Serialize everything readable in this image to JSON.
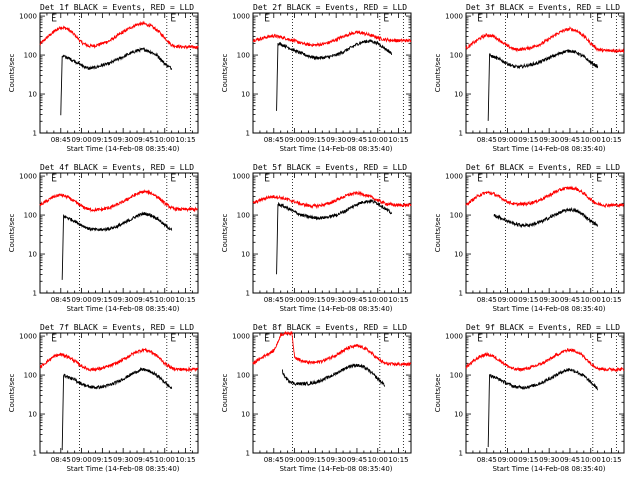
{
  "chart_data": {
    "type": "line",
    "panel_title_template": "{det} BLACK = Events, RED = LLD",
    "xlabel": "Start Time (14-Feb-08 08:35:40)",
    "ylabel": "Counts/sec",
    "xticks_min": [
      565,
      580,
      595,
      610,
      625,
      640,
      655
    ],
    "xtick_labels": [
      "08:45",
      "09:00",
      "09:15",
      "09:30",
      "09:45",
      "10:00",
      "10:15"
    ],
    "xlim_min": [
      550,
      664
    ],
    "y_log": true,
    "ylim": [
      1,
      1200
    ],
    "yticks": [
      1,
      10,
      100,
      1000
    ],
    "ytick_labels": [
      "1",
      "10",
      "100",
      "1000"
    ],
    "E_markers_min": [
      559,
      645
    ],
    "vlines_min": [
      578.5,
      641.5,
      658.5
    ],
    "legend": [
      {
        "name": "Events",
        "color": "#000000"
      },
      {
        "name": "LLD",
        "color": "#ff0000"
      }
    ],
    "panels": [
      {
        "det": "Det 1f",
        "red": {
          "x": [
            550,
            555,
            560,
            565,
            570,
            575,
            580,
            585,
            590,
            595,
            600,
            605,
            610,
            615,
            620,
            625,
            630,
            635,
            640,
            645,
            650,
            655,
            660,
            664
          ],
          "y": [
            190,
            280,
            400,
            520,
            470,
            330,
            210,
            170,
            175,
            200,
            230,
            300,
            390,
            500,
            610,
            640,
            560,
            420,
            280,
            180,
            165,
            160,
            160,
            160
          ]
        },
        "black": {
          "start": 565,
          "x": [
            565,
            566,
            570,
            575,
            580,
            585,
            590,
            595,
            600,
            605,
            610,
            615,
            620,
            625,
            630,
            635,
            640,
            645
          ],
          "y": [
            3,
            95,
            85,
            70,
            55,
            45,
            48,
            55,
            60,
            75,
            90,
            110,
            130,
            140,
            120,
            95,
            60,
            45
          ]
        }
      },
      {
        "det": "Det 2f",
        "red": {
          "x": [
            550,
            555,
            560,
            565,
            570,
            575,
            580,
            585,
            590,
            595,
            600,
            605,
            610,
            615,
            620,
            625,
            630,
            635,
            640,
            645,
            650,
            655,
            660,
            664
          ],
          "y": [
            240,
            260,
            290,
            310,
            290,
            260,
            230,
            200,
            185,
            180,
            190,
            210,
            250,
            300,
            350,
            380,
            360,
            320,
            280,
            250,
            240,
            235,
            235,
            235
          ]
        },
        "black": {
          "start": 567,
          "x": [
            567,
            568,
            570,
            575,
            580,
            585,
            590,
            595,
            600,
            605,
            610,
            615,
            620,
            625,
            630,
            635,
            640,
            645,
            650
          ],
          "y": [
            4,
            200,
            190,
            160,
            130,
            110,
            95,
            85,
            85,
            90,
            100,
            120,
            150,
            190,
            220,
            230,
            200,
            150,
            110
          ]
        }
      },
      {
        "det": "Det 3f",
        "red": {
          "x": [
            550,
            555,
            560,
            565,
            570,
            575,
            580,
            585,
            590,
            595,
            600,
            605,
            610,
            615,
            620,
            625,
            630,
            635,
            640,
            645,
            650,
            655,
            660,
            664
          ],
          "y": [
            150,
            200,
            270,
            330,
            300,
            230,
            170,
            140,
            140,
            150,
            170,
            200,
            260,
            340,
            420,
            470,
            420,
            310,
            200,
            140,
            130,
            130,
            130,
            130
          ]
        },
        "black": {
          "start": 566,
          "x": [
            566,
            567,
            570,
            575,
            580,
            585,
            590,
            595,
            600,
            605,
            610,
            615,
            620,
            625,
            630,
            635,
            640,
            645
          ],
          "y": [
            2,
            100,
            90,
            75,
            60,
            50,
            50,
            55,
            60,
            70,
            85,
            100,
            120,
            130,
            115,
            90,
            65,
            50
          ]
        }
      },
      {
        "det": "Det 4f",
        "red": {
          "x": [
            550,
            555,
            560,
            565,
            570,
            575,
            580,
            585,
            590,
            595,
            600,
            605,
            610,
            615,
            620,
            625,
            630,
            635,
            640,
            645,
            650,
            655,
            660,
            664
          ],
          "y": [
            180,
            230,
            300,
            330,
            290,
            220,
            170,
            140,
            135,
            140,
            155,
            180,
            220,
            280,
            350,
            400,
            370,
            290,
            200,
            150,
            140,
            140,
            140,
            140
          ]
        },
        "black": {
          "start": 566,
          "x": [
            566,
            567,
            570,
            575,
            580,
            585,
            590,
            595,
            600,
            605,
            610,
            615,
            620,
            625,
            630,
            635,
            640,
            645
          ],
          "y": [
            2,
            95,
            85,
            70,
            55,
            45,
            42,
            42,
            45,
            50,
            60,
            75,
            95,
            110,
            100,
            80,
            55,
            42
          ]
        }
      },
      {
        "det": "Det 5f",
        "red": {
          "x": [
            550,
            555,
            560,
            565,
            570,
            575,
            580,
            585,
            590,
            595,
            600,
            605,
            610,
            615,
            620,
            625,
            630,
            635,
            640,
            645,
            650,
            655,
            660,
            664
          ],
          "y": [
            200,
            240,
            280,
            300,
            280,
            250,
            220,
            190,
            175,
            170,
            180,
            200,
            240,
            290,
            340,
            370,
            340,
            290,
            240,
            200,
            185,
            180,
            180,
            180
          ]
        },
        "black": {
          "start": 567,
          "x": [
            567,
            568,
            570,
            575,
            580,
            585,
            590,
            595,
            600,
            605,
            610,
            615,
            620,
            625,
            630,
            635,
            640,
            645,
            650
          ],
          "y": [
            3,
            190,
            180,
            150,
            120,
            100,
            90,
            85,
            85,
            90,
            100,
            120,
            150,
            190,
            220,
            230,
            200,
            150,
            110
          ]
        }
      },
      {
        "det": "Det 6f",
        "red": {
          "x": [
            550,
            555,
            560,
            565,
            570,
            575,
            580,
            585,
            590,
            595,
            600,
            605,
            610,
            615,
            620,
            625,
            630,
            635,
            640,
            645,
            650,
            655,
            660,
            664
          ],
          "y": [
            180,
            250,
            330,
            380,
            350,
            280,
            220,
            190,
            190,
            200,
            220,
            260,
            320,
            400,
            470,
            500,
            460,
            360,
            250,
            190,
            180,
            180,
            180,
            180
          ]
        },
        "black": {
          "start": 570,
          "x": [
            570,
            575,
            580,
            585,
            590,
            595,
            600,
            605,
            610,
            615,
            620,
            625,
            630,
            635,
            640,
            645
          ],
          "y": [
            100,
            85,
            70,
            60,
            55,
            55,
            60,
            70,
            85,
            105,
            125,
            140,
            125,
            100,
            70,
            55
          ]
        }
      },
      {
        "det": "Det 7f",
        "red": {
          "x": [
            550,
            555,
            560,
            565,
            570,
            575,
            580,
            585,
            590,
            595,
            600,
            605,
            610,
            615,
            620,
            625,
            630,
            635,
            640,
            645,
            650,
            655,
            660,
            664
          ],
          "y": [
            160,
            220,
            300,
            340,
            300,
            230,
            170,
            140,
            140,
            150,
            170,
            200,
            250,
            320,
            400,
            450,
            400,
            300,
            200,
            150,
            140,
            140,
            140,
            140
          ]
        },
        "black": {
          "start": 566,
          "x": [
            566,
            567,
            570,
            575,
            580,
            585,
            590,
            595,
            600,
            605,
            610,
            615,
            620,
            625,
            630,
            635,
            640,
            645
          ],
          "y": [
            1.2,
            100,
            90,
            75,
            60,
            50,
            48,
            50,
            55,
            65,
            80,
            100,
            125,
            140,
            120,
            95,
            65,
            45
          ]
        }
      },
      {
        "det": "Det 8f",
        "red": {
          "x": [
            550,
            555,
            560,
            565,
            568,
            570,
            575,
            578,
            580,
            585,
            590,
            595,
            600,
            605,
            610,
            615,
            620,
            625,
            630,
            635,
            640,
            645,
            650,
            655,
            660,
            664
          ],
          "y": [
            200,
            260,
            340,
            420,
            700,
            1100,
            1200,
            1200,
            300,
            230,
            210,
            210,
            230,
            270,
            330,
            420,
            520,
            560,
            500,
            380,
            260,
            200,
            190,
            190,
            190,
            190
          ]
        },
        "black": {
          "start": 571,
          "x": [
            571,
            573,
            575,
            580,
            585,
            590,
            595,
            600,
            605,
            610,
            615,
            620,
            625,
            630,
            635,
            640,
            645
          ],
          "y": [
            130,
            90,
            75,
            60,
            60,
            60,
            65,
            75,
            90,
            110,
            140,
            170,
            180,
            160,
            120,
            80,
            55
          ]
        }
      },
      {
        "det": "Det 9f",
        "red": {
          "x": [
            550,
            555,
            560,
            565,
            570,
            575,
            580,
            585,
            590,
            595,
            600,
            605,
            610,
            615,
            620,
            625,
            630,
            635,
            640,
            645,
            650,
            655,
            660,
            664
          ],
          "y": [
            160,
            220,
            300,
            340,
            300,
            230,
            170,
            140,
            140,
            150,
            170,
            200,
            250,
            320,
            400,
            450,
            400,
            300,
            200,
            150,
            140,
            140,
            140,
            140
          ]
        },
        "black": {
          "start": 566,
          "x": [
            566,
            567,
            570,
            575,
            580,
            585,
            590,
            595,
            600,
            605,
            610,
            615,
            620,
            625,
            630,
            635,
            640,
            645
          ],
          "y": [
            1.5,
            100,
            90,
            75,
            60,
            50,
            48,
            50,
            55,
            65,
            80,
            100,
            125,
            140,
            120,
            95,
            65,
            45
          ]
        }
      }
    ]
  }
}
